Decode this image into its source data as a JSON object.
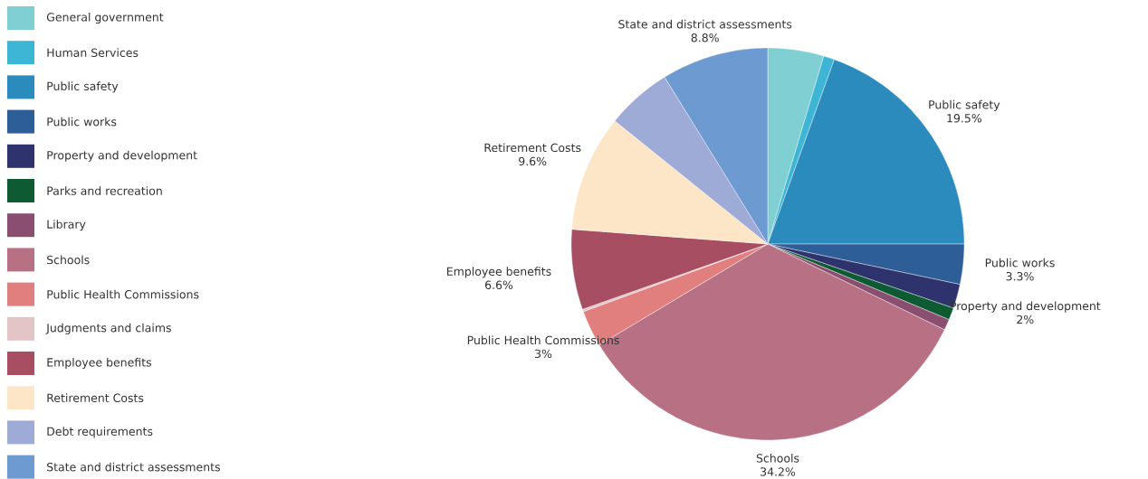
{
  "chart_data": {
    "type": "pie",
    "categories": [
      "General government",
      "Human Services",
      "Public safety",
      "Public works",
      "Property and development",
      "Parks and recreation",
      "Library",
      "Schools",
      "Public Health Commissions",
      "Judgments and claims",
      "Employee benefits",
      "Retirement Costs",
      "Debt requirements",
      "State and district assessments"
    ],
    "values": [
      4.6,
      0.9,
      19.5,
      3.3,
      2,
      1,
      0.9,
      34.2,
      3,
      0.2,
      6.6,
      9.6,
      5.4,
      8.8
    ],
    "value_labels": [
      null,
      null,
      "19.5%",
      "3.3%",
      "2%",
      null,
      null,
      "34.2%",
      "3%",
      null,
      "6.6%",
      "9.6%",
      null,
      "8.8%"
    ],
    "colors": [
      "#7fcfd3",
      "#3db6d6",
      "#2b8bbd",
      "#2d5e98",
      "#2e336d",
      "#0d5a33",
      "#8a4f70",
      "#b77084",
      "#e17f7f",
      "#e3c5c8",
      "#a84e62",
      "#fde6c8",
      "#9eabd6",
      "#6c9ad1"
    ],
    "legend": "left"
  }
}
